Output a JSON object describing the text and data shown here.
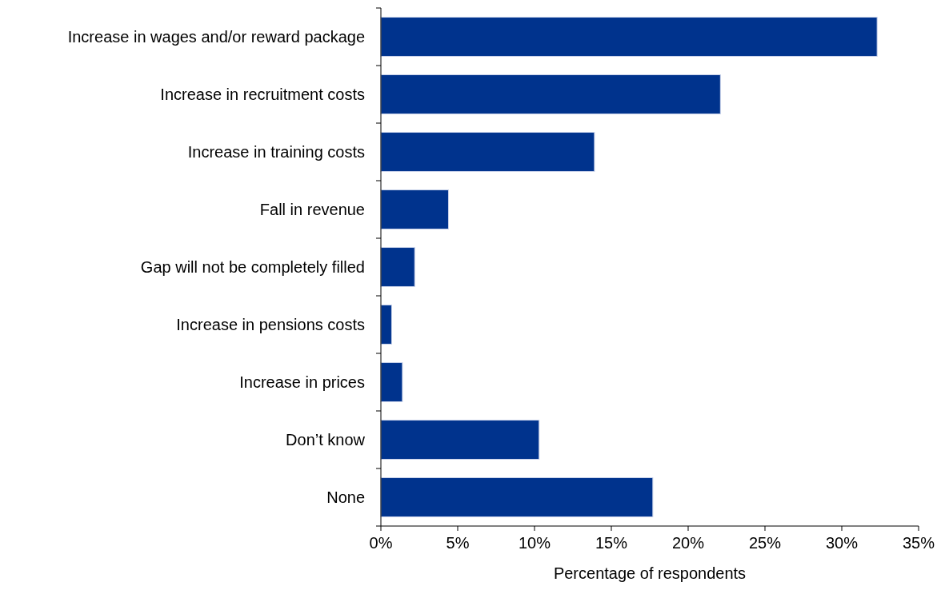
{
  "chart_data": {
    "type": "bar",
    "orientation": "horizontal",
    "xlabel": "Percentage of respondents",
    "categories": [
      "Increase in wages and/or reward package",
      "Increase in recruitment costs",
      "Increase in training costs",
      "Fall in revenue",
      "Gap will not be completely filled",
      "Increase in pensions costs",
      "Increase in prices",
      "Don’t know",
      "None"
    ],
    "values": [
      32.3,
      22.1,
      13.9,
      4.4,
      2.2,
      0.7,
      1.4,
      10.3,
      17.7
    ],
    "color": "#00338d",
    "xlim": [
      0,
      35
    ],
    "xticks": [
      {
        "value": 0,
        "label": "0%"
      },
      {
        "value": 5,
        "label": "5%"
      },
      {
        "value": 10,
        "label": "10%"
      },
      {
        "value": 15,
        "label": "15%"
      },
      {
        "value": 20,
        "label": "20%"
      },
      {
        "value": 25,
        "label": "25%"
      },
      {
        "value": 30,
        "label": "30%"
      },
      {
        "value": 35,
        "label": "35%"
      }
    ],
    "grid": false
  }
}
